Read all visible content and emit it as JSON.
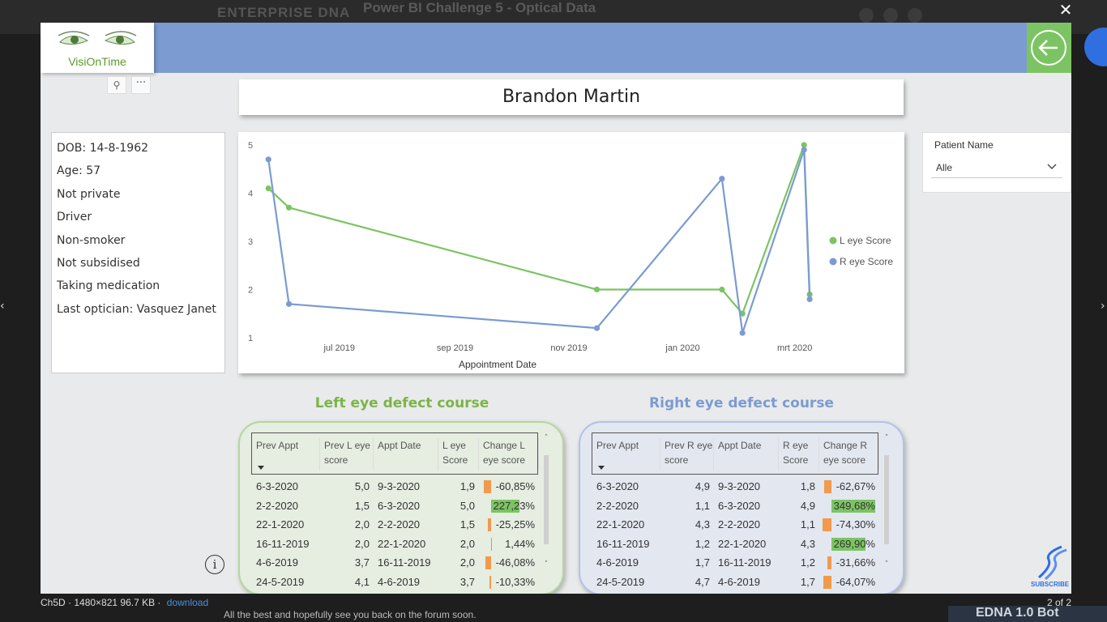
{
  "backdrop": {
    "brand": "ENTERPRISE DNA",
    "thread_title": "Power BI Challenge 5 - Optical Data",
    "forum_text": "All the best and hopefully see you back on the forum soon.",
    "bot_label": "EDNA 1.0 Bot"
  },
  "lightbox": {
    "close_glyph": "✕",
    "caption": "Ch5D · 1480×821 96.7 KB ·",
    "download_label": "download",
    "page_count": "2 of 2"
  },
  "report": {
    "logo_text": "VisiOnTime",
    "patient_name": "Brandon Martin",
    "info": [
      "DOB: 14-8-1962",
      "Age: 57",
      "Not private",
      "Driver",
      "Non-smoker",
      "Not subsidised",
      "Taking medication",
      "Last optician: Vasquez Janet"
    ],
    "slicer": {
      "label": "Patient Name",
      "value": "Alle"
    },
    "left_title": "Left eye defect course",
    "right_title": "Right eye defect course",
    "left_headers": [
      "Prev Appt",
      "Prev L eye score",
      "Appt Date",
      "L eye Score",
      "Change L eye score"
    ],
    "right_headers": [
      "Prev Appt",
      "Prev R eye score",
      "Appt Date",
      "R eye Score",
      "Change R eye score"
    ],
    "left_rows": [
      [
        "6-3-2020",
        "5,0",
        "9-3-2020",
        "1,9",
        "-60,85%"
      ],
      [
        "2-2-2020",
        "1,5",
        "6-3-2020",
        "5,0",
        "227,23%"
      ],
      [
        "22-1-2020",
        "2,0",
        "2-2-2020",
        "1,5",
        "-25,25%"
      ],
      [
        "16-11-2019",
        "2,0",
        "22-1-2020",
        "2,0",
        "1,44%"
      ],
      [
        "4-6-2019",
        "3,7",
        "16-11-2019",
        "2,0",
        "-46,08%"
      ],
      [
        "24-5-2019",
        "4,1",
        "4-6-2019",
        "3,7",
        "-10,33%"
      ]
    ],
    "right_rows": [
      [
        "6-3-2020",
        "4,9",
        "9-3-2020",
        "1,8",
        "-62,67%"
      ],
      [
        "2-2-2020",
        "1,1",
        "6-3-2020",
        "4,9",
        "349,68%"
      ],
      [
        "22-1-2020",
        "4,3",
        "2-2-2020",
        "1,1",
        "-74,30%"
      ],
      [
        "16-11-2019",
        "1,2",
        "22-1-2020",
        "4,3",
        "269,90%"
      ],
      [
        "4-6-2019",
        "1,7",
        "16-11-2019",
        "1,2",
        "-31,66%"
      ],
      [
        "24-5-2019",
        "4,7",
        "4-6-2019",
        "1,7",
        "-64,07%"
      ]
    ],
    "left_change_values": [
      -60.85,
      227.23,
      -25.25,
      1.44,
      -46.08,
      -10.33
    ],
    "right_change_values": [
      -62.67,
      349.68,
      -74.3,
      269.9,
      -31.66,
      -64.07
    ],
    "subscribe_label": "SUBSCRIBE",
    "colors": {
      "band": "#7b9bd1",
      "left_green": "#7ab547",
      "right_blue": "#7b9bd1",
      "bar_positive": "#7cc463",
      "bar_negative": "#f19a4c",
      "back_button": "#7cc463"
    }
  },
  "chart_data": {
    "type": "line",
    "xlabel": "Appointment Date",
    "ylabel": "",
    "x_tick_labels": [
      "jul 2019",
      "sep 2019",
      "nov 2019",
      "jan 2020",
      "mrt 2020"
    ],
    "x_tick_dates": [
      "2019-07-01",
      "2019-09-01",
      "2019-11-01",
      "2020-01-01",
      "2020-03-01"
    ],
    "xlim": [
      "2019-05-20",
      "2020-03-12"
    ],
    "ylim": [
      1,
      5
    ],
    "y_ticks": [
      1,
      2,
      3,
      4,
      5
    ],
    "legend_position": "right",
    "series": [
      {
        "name": "L eye Score",
        "color": "#7cc463",
        "points": [
          [
            "2019-05-24",
            4.1
          ],
          [
            "2019-06-04",
            3.7
          ],
          [
            "2019-11-16",
            2.0
          ],
          [
            "2020-01-22",
            2.0
          ],
          [
            "2020-02-02",
            1.5
          ],
          [
            "2020-03-06",
            5.0
          ],
          [
            "2020-03-09",
            1.9
          ]
        ]
      },
      {
        "name": "R eye Score",
        "color": "#7b9bd1",
        "points": [
          [
            "2019-05-24",
            4.7
          ],
          [
            "2019-06-04",
            1.7
          ],
          [
            "2019-11-16",
            1.2
          ],
          [
            "2020-01-22",
            4.3
          ],
          [
            "2020-02-02",
            1.1
          ],
          [
            "2020-03-06",
            4.9
          ],
          [
            "2020-03-09",
            1.8
          ]
        ]
      }
    ]
  }
}
